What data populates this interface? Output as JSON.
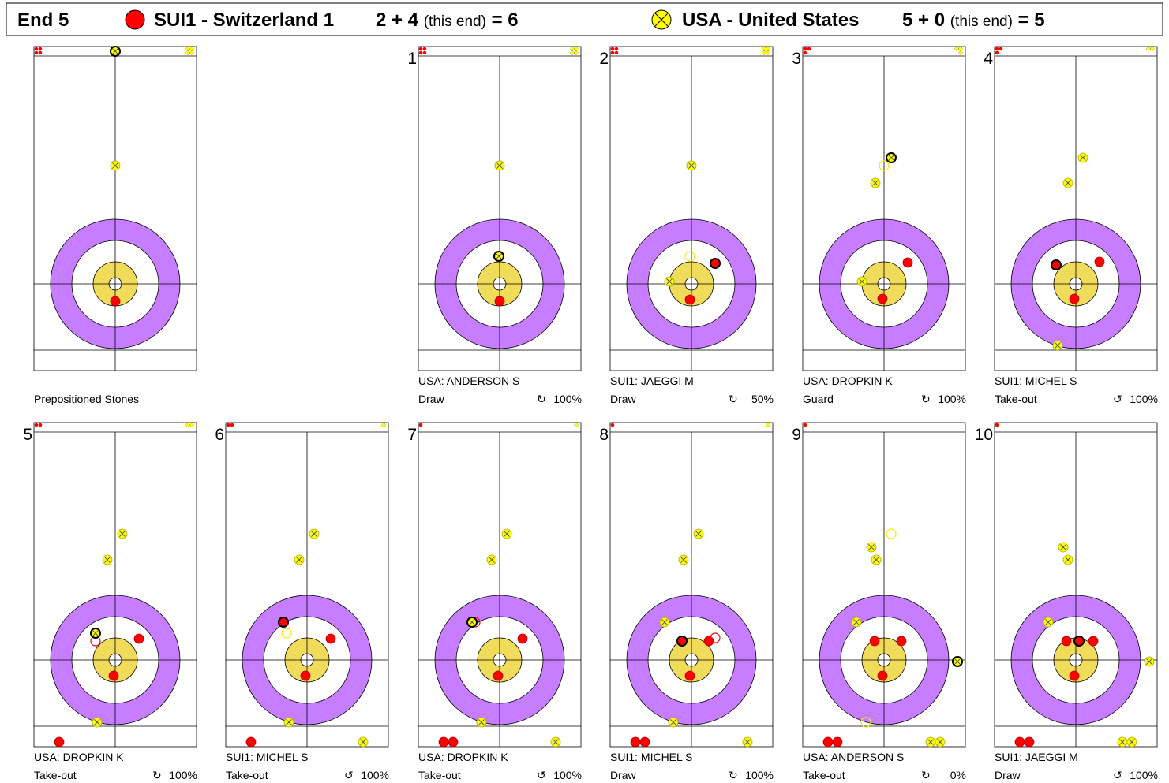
{
  "header": {
    "end": "End 5",
    "team1": {
      "name": "SUI1 - Switzerland 1",
      "score": "2 + 4",
      "note": "(this end)",
      "total": "= 6"
    },
    "team2": {
      "name": "USA - United States",
      "score": "5 + 0",
      "note": "(this end)",
      "total": "= 5"
    }
  },
  "prepositioned": {
    "label": "Prepositioned Stones"
  },
  "shots": [
    {
      "number": "1",
      "player": "USA: ANDERSON S",
      "shot": "Draw",
      "rotation": "↻",
      "percent": "100%"
    },
    {
      "number": "2",
      "player": "SUI1: JAEGGI M",
      "shot": "Draw",
      "rotation": "↻",
      "percent": "50%"
    },
    {
      "number": "3",
      "player": "USA: DROPKIN K",
      "shot": "Guard",
      "rotation": "↻",
      "percent": "100%"
    },
    {
      "number": "4",
      "player": "SUI1: MICHEL S",
      "shot": "Take-out",
      "rotation": "↺",
      "percent": "100%"
    },
    {
      "number": "5",
      "player": "USA: DROPKIN K",
      "shot": "Take-out",
      "rotation": "↻",
      "percent": "100%"
    },
    {
      "number": "6",
      "player": "SUI1: MICHEL S",
      "shot": "Take-out",
      "rotation": "↺",
      "percent": "100%"
    },
    {
      "number": "7",
      "player": "USA: DROPKIN K",
      "shot": "Take-out",
      "rotation": "↺",
      "percent": "100%"
    },
    {
      "number": "8",
      "player": "SUI1: MICHEL S",
      "shot": "Draw",
      "rotation": "↻",
      "percent": "100%"
    },
    {
      "number": "9",
      "player": "USA: ANDERSON S",
      "shot": "Take-out",
      "rotation": "↻",
      "percent": "0%"
    },
    {
      "number": "10",
      "player": "SUI1: JAEGGI M",
      "shot": "Draw",
      "rotation": "↺",
      "percent": "100%"
    }
  ]
}
